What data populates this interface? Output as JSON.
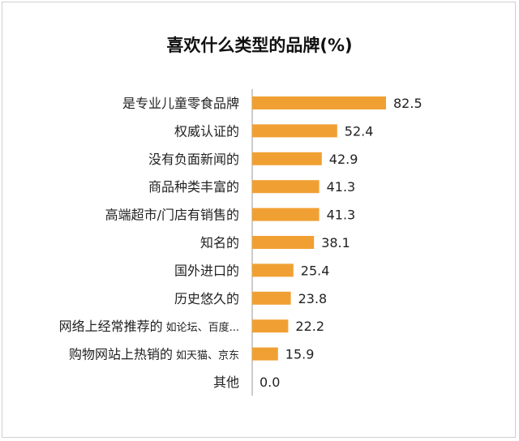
{
  "chart_data": {
    "type": "bar",
    "orientation": "horizontal",
    "title": "喜欢什么类型的品牌(%)",
    "categories": [
      {
        "label": "是专业儿童零食品牌",
        "note": ""
      },
      {
        "label": "权威认证的",
        "note": ""
      },
      {
        "label": "没有负面新闻的",
        "note": ""
      },
      {
        "label": "商品种类丰富的",
        "note": ""
      },
      {
        "label": "高端超市/门店有销售的",
        "note": ""
      },
      {
        "label": "知名的",
        "note": ""
      },
      {
        "label": "国外进口的",
        "note": ""
      },
      {
        "label": "历史悠久的",
        "note": ""
      },
      {
        "label": "网络上经常推荐的",
        "note": "如论坛、百度..."
      },
      {
        "label": "购物网站上热销的",
        "note": "如天猫、京东"
      },
      {
        "label": "其他",
        "note": ""
      }
    ],
    "values": [
      82.5,
      52.4,
      42.9,
      41.3,
      41.3,
      38.1,
      25.4,
      23.8,
      22.2,
      15.9,
      0.0
    ],
    "value_labels": [
      "82.5",
      "52.4",
      "42.9",
      "41.3",
      "41.3",
      "38.1",
      "25.4",
      "23.8",
      "22.2",
      "15.9",
      "0.0"
    ],
    "xlim": [
      0,
      100
    ],
    "grid": false,
    "legend": "none",
    "bar_color": "#F0A033",
    "axis_color": "#9a9a9a"
  }
}
